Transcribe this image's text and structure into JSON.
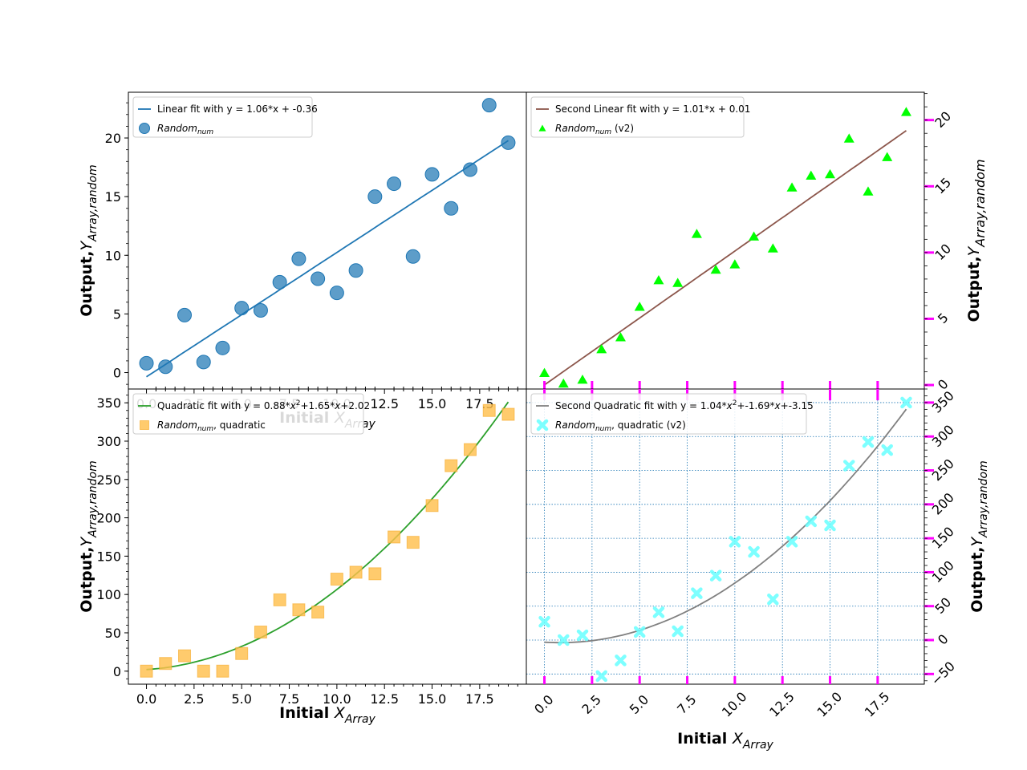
{
  "chart_data": [
    {
      "id": "top-left",
      "type": "scatter",
      "xlabel": "Initial X_Array",
      "ylabel": "Output, Y_Array,random",
      "xlim": [
        -0.95,
        19.95
      ],
      "ylim": [
        -1.4,
        23.9
      ],
      "x_ticks": [
        "0.0",
        "2.5",
        "5.0",
        "7.5",
        "10.0",
        "12.5",
        "15.0",
        "17.5"
      ],
      "y_ticks": [
        "0",
        "5",
        "10",
        "15",
        "20"
      ],
      "grid": false,
      "legend_position": "top-left",
      "fit": {
        "name": "Linear fit with y = 1.06*x + -0.36",
        "kind": "linear",
        "coef": [
          1.06,
          -0.36
        ],
        "x_range": [
          0,
          19
        ],
        "color": "#1f77b4"
      },
      "series": [
        {
          "name": "Random_num",
          "marker": "circle",
          "color": "#1f77b4",
          "x": [
            0,
            1,
            2,
            3,
            4,
            5,
            6,
            7,
            8,
            9,
            10,
            11,
            12,
            13,
            14,
            15,
            16,
            17,
            18,
            19
          ],
          "y": [
            0.8,
            0.5,
            4.9,
            0.9,
            2.1,
            5.5,
            5.3,
            7.7,
            9.7,
            8.0,
            6.8,
            8.7,
            15.0,
            16.1,
            9.9,
            16.9,
            14.0,
            17.3,
            22.8,
            19.6
          ]
        }
      ]
    },
    {
      "id": "top-right",
      "type": "scatter",
      "ylabel": "Output, Y_Array,random",
      "xlim": [
        -0.95,
        19.95
      ],
      "ylim": [
        -0.3,
        22.1
      ],
      "y_ticks": [
        "0",
        "5",
        "10",
        "15",
        "20"
      ],
      "grid": false,
      "legend_position": "top-left",
      "y_axis_side": "right",
      "fit": {
        "name": "Second Linear fit with y = 1.01*x + 0.01",
        "kind": "linear",
        "coef": [
          1.01,
          0.01
        ],
        "x_range": [
          0,
          19
        ],
        "color": "#8c564b"
      },
      "series": [
        {
          "name": "Random_num (v2)",
          "marker": "triangle",
          "color": "#00ff00",
          "x": [
            0,
            1,
            2,
            3,
            4,
            5,
            6,
            7,
            8,
            9,
            10,
            11,
            12,
            13,
            14,
            15,
            16,
            17,
            18,
            19
          ],
          "y": [
            0.9,
            0.1,
            0.4,
            2.7,
            3.6,
            5.9,
            7.9,
            7.7,
            11.4,
            8.7,
            9.1,
            11.2,
            10.3,
            14.9,
            15.8,
            15.9,
            18.6,
            14.6,
            17.2,
            20.6
          ]
        }
      ]
    },
    {
      "id": "bottom-left",
      "type": "scatter",
      "xlabel": "Initial X_Array",
      "ylabel": "Output, Y_Array,random",
      "xlim": [
        -0.95,
        19.95
      ],
      "ylim": [
        -17,
        368
      ],
      "x_ticks": [
        "0.0",
        "2.5",
        "5.0",
        "7.5",
        "10.0",
        "12.5",
        "15.0",
        "17.5"
      ],
      "y_ticks": [
        "0",
        "50",
        "100",
        "150",
        "200",
        "250",
        "300",
        "350"
      ],
      "grid": false,
      "legend_position": "top-left",
      "fit": {
        "name": "Quadratic fit with y = 0.88*x^2+1.65*x+2.02",
        "kind": "quadratic",
        "coef": [
          0.88,
          1.65,
          2.02
        ],
        "x_range": [
          0,
          19
        ],
        "color": "#2ca02c"
      },
      "series": [
        {
          "name": "Random_num, quadratic",
          "marker": "square",
          "color": "#ffc04d",
          "x": [
            0,
            1,
            2,
            3,
            4,
            5,
            6,
            7,
            8,
            9,
            10,
            11,
            12,
            13,
            14,
            15,
            16,
            17,
            18,
            19
          ],
          "y": [
            0,
            10,
            20,
            0,
            0,
            23,
            51,
            93,
            80,
            77,
            120,
            129,
            127,
            175,
            168,
            216,
            268,
            289,
            340,
            335
          ]
        }
      ]
    },
    {
      "id": "bottom-right",
      "type": "scatter",
      "xlabel": "Initial X_Array",
      "ylabel": "Output, Y_Array,random",
      "xlim": [
        -0.95,
        19.95
      ],
      "ylim": [
        -65,
        370
      ],
      "x_ticks": [
        "0.0",
        "2.5",
        "5.0",
        "7.5",
        "10.0",
        "12.5",
        "15.0",
        "17.5"
      ],
      "y_ticks": [
        "−50",
        "0",
        "50",
        "100",
        "150",
        "200",
        "250",
        "300",
        "350"
      ],
      "grid": true,
      "legend_position": "top-left",
      "y_axis_side": "right",
      "fit": {
        "name": "Second Quadratic fit with y = 1.04*x^2+-1.69*x+-3.15",
        "kind": "quadratic",
        "coef": [
          1.04,
          -1.69,
          -3.15
        ],
        "x_range": [
          0,
          19
        ],
        "color": "#808080"
      },
      "series": [
        {
          "name": "Random_num, quadratic (v2)",
          "marker": "x",
          "color": "#66ffff",
          "x": [
            0,
            1,
            2,
            3,
            4,
            5,
            6,
            7,
            8,
            9,
            10,
            11,
            12,
            13,
            14,
            15,
            16,
            17,
            18,
            19
          ],
          "y": [
            27,
            0,
            7,
            -53,
            -30,
            12,
            41,
            13,
            69,
            95,
            145,
            130,
            60,
            145,
            175,
            169,
            257,
            292,
            280,
            350
          ]
        }
      ]
    }
  ]
}
